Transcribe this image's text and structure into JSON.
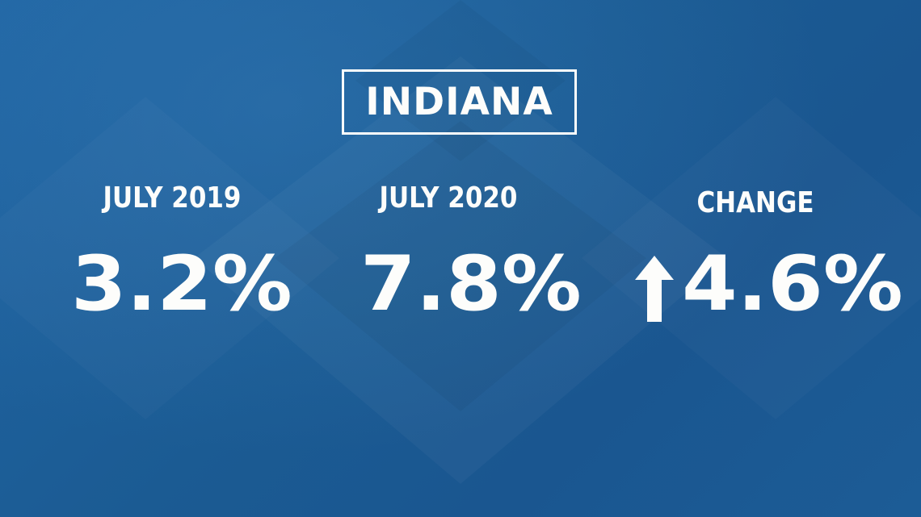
{
  "title": "INDIANA",
  "columns": [
    {
      "label": "JULY 2019",
      "value": "3.2%"
    },
    {
      "label": "JULY 2020",
      "value": "7.8%"
    },
    {
      "label": "CHANGE",
      "value": "4.6%",
      "icon": "up-arrow-icon"
    }
  ],
  "colors": {
    "background": "#1d5c95",
    "text": "#fdfdfb"
  }
}
